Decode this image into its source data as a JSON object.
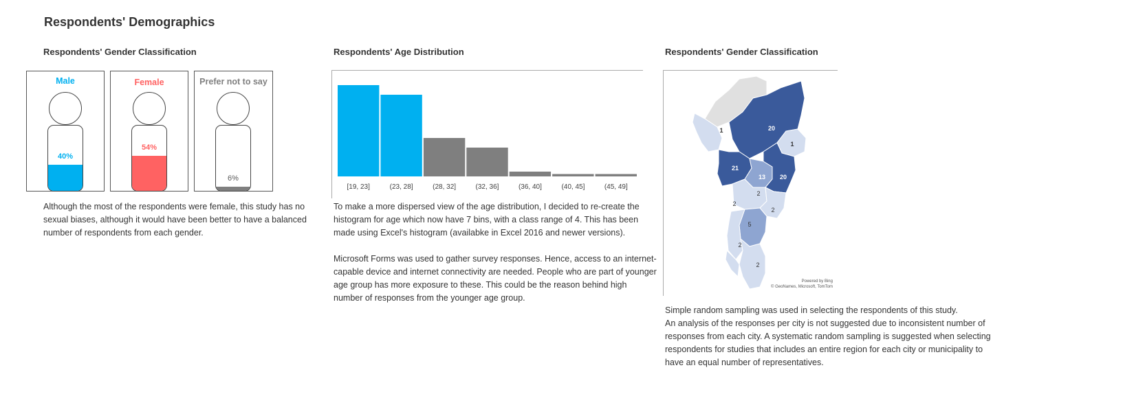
{
  "page_title": "Respondents' Demographics",
  "gender": {
    "heading": "Respondents' Gender Classification",
    "items": [
      {
        "label": "Male",
        "percent_text": "40%",
        "value": 40,
        "color": "#00B0F0"
      },
      {
        "label": "Female",
        "percent_text": "54%",
        "value": 54,
        "color": "#FF6262"
      },
      {
        "label": "Prefer not to say",
        "percent_text": "6%",
        "value": 6,
        "color": "#7F7F7F"
      }
    ],
    "note": "Although the most of the respondents were female, this study has no sexual biases, although it would have been better to have a balanced number of respondents from each gender."
  },
  "age": {
    "heading": "Respondents' Age Distribution",
    "note1": "To make a more dispersed view of the age distribution, I decided to re-create the histogram for age which now have 7 bins, with a class range of 4. This has been made using Excel's histogram (availabke in Excel 2016 and newer versions).",
    "note2": "Microsoft Forms was used to gather survey responses. Hence, access to an internet-capable device and internet connectivity are needed. People who are part of younger age group has more exposure to these. This could be the reason behind high number of responses from the younger age group."
  },
  "map": {
    "heading": "Respondents' Gender Classification",
    "region_values": [
      "20",
      "1",
      "1",
      "21",
      "13",
      "20",
      "2",
      "2",
      "2",
      "5",
      "2",
      "2"
    ],
    "credit_line1": "Powered by Bing",
    "credit_line2": "© GeoNames, Microsoft, TomTom",
    "note_line1": "Simple random sampling was used in selecting the respondents of this study.",
    "note_line2": "An analysis of the responses per city is not suggested due to inconsistent number of responses from each city. A systematic random sampling is suggested when selecting respondents for studies that includes an entire region for each city or municipality to have an equal number of representatives.",
    "colors": {
      "dark": "#3A5A9B",
      "mid": "#8EA5D1",
      "light": "#D3DDEF",
      "none": "#E0E0E0"
    }
  },
  "chart_data": [
    {
      "type": "pictograph",
      "title": "Respondents' Gender Classification",
      "categories": [
        "Male",
        "Female",
        "Prefer not to say"
      ],
      "values": [
        40,
        54,
        6
      ],
      "unit": "%"
    },
    {
      "type": "bar",
      "title": "Respondents' Age Distribution",
      "categories": [
        "[19, 23]",
        "(23, 28]",
        "(28, 32]",
        "(32, 36]",
        "(36, 40]",
        "(40, 45]",
        "(45, 49]"
      ],
      "values": [
        38,
        34,
        16,
        12,
        2,
        1,
        1
      ],
      "highlight_color": "#00B0F0",
      "base_color": "#7F7F7F",
      "highlighted": [
        0,
        1
      ],
      "ylim": [
        0,
        40
      ],
      "grid": false,
      "xlabel": "",
      "ylabel": ""
    },
    {
      "type": "map",
      "title": "Respondents' Gender Classification",
      "regions": [
        {
          "value": 20
        },
        {
          "value": 1
        },
        {
          "value": 1
        },
        {
          "value": 21
        },
        {
          "value": 13
        },
        {
          "value": 20
        },
        {
          "value": 2
        },
        {
          "value": 2
        },
        {
          "value": 2
        },
        {
          "value": 5
        },
        {
          "value": 2
        },
        {
          "value": 2
        }
      ]
    }
  ]
}
